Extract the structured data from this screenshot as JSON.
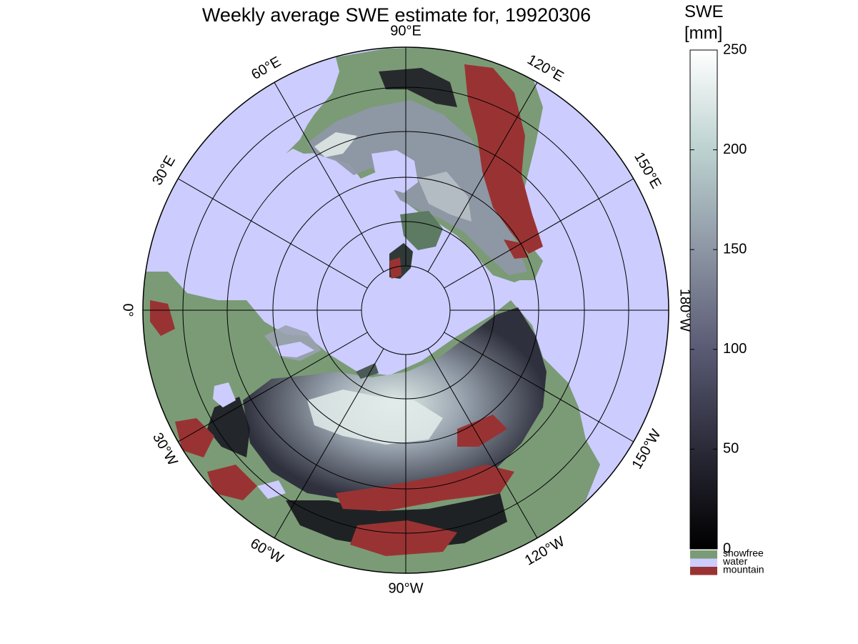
{
  "figure": {
    "title": "Weekly average SWE estimate for, 19920306",
    "colorbar": {
      "label_line1": "SWE",
      "label_line2": "[mm]",
      "ticks": [
        {
          "label": "250",
          "value": 250
        },
        {
          "label": "200",
          "value": 200
        },
        {
          "label": "150",
          "value": 150
        },
        {
          "label": "100",
          "value": 100
        },
        {
          "label": "50",
          "value": 50
        },
        {
          "label": "0",
          "value": 0
        }
      ],
      "range": [
        0,
        250
      ],
      "gradient_colors": [
        "#000000",
        "#2a2a38",
        "#5a5a74",
        "#8d96a4",
        "#bcd2d0",
        "#ffffff"
      ],
      "categories": [
        {
          "label": "snowfree",
          "color": "#7a9b76"
        },
        {
          "label": "water",
          "color": "#ccccff"
        },
        {
          "label": "mountain",
          "color": "#993333"
        }
      ]
    },
    "map": {
      "projection": "north polar stereographic",
      "water_color": "#ccccff",
      "land_color": "#7a9b76",
      "mountain_color": "#993333",
      "longitude_labels": [
        {
          "lon": 0,
          "label": "0°"
        },
        {
          "lon": 30,
          "label": "30°E"
        },
        {
          "lon": 60,
          "label": "60°E"
        },
        {
          "lon": 90,
          "label": "90°E"
        },
        {
          "lon": 120,
          "label": "120°E"
        },
        {
          "lon": 150,
          "label": "150°E"
        },
        {
          "lon": 180,
          "label": "180°W"
        },
        {
          "lon": -150,
          "label": "150°W"
        },
        {
          "lon": -120,
          "label": "120°W"
        },
        {
          "lon": -90,
          "label": "90°W"
        },
        {
          "lon": -60,
          "label": "60°W"
        },
        {
          "lon": -30,
          "label": "30°W"
        }
      ]
    }
  }
}
